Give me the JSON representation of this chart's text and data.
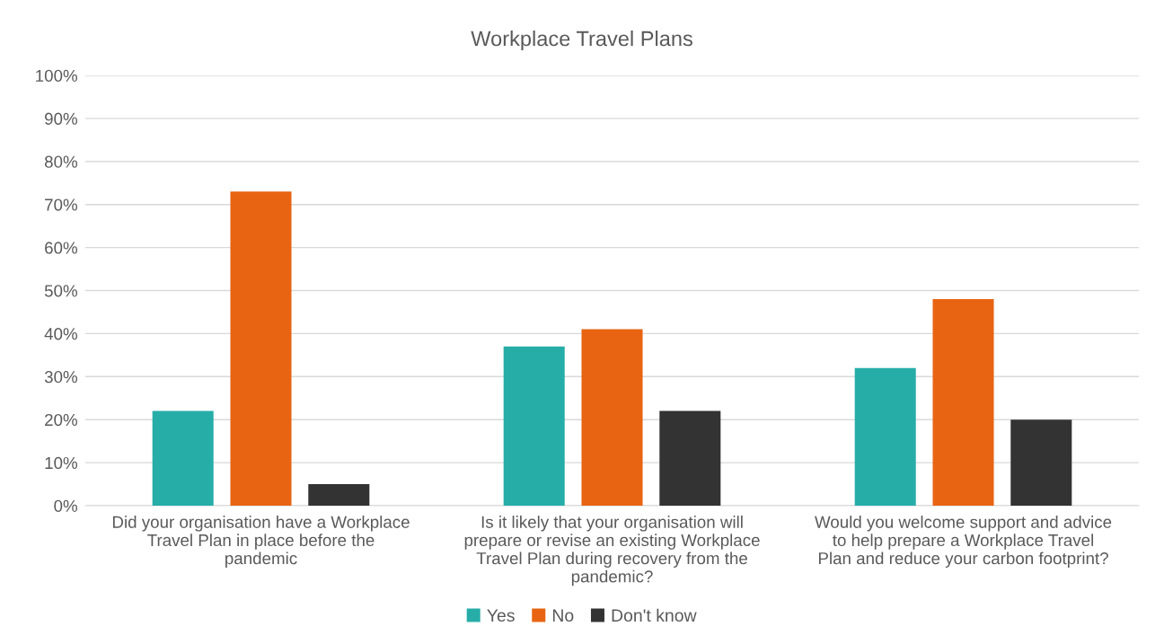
{
  "chart_data": {
    "type": "bar",
    "title": "Workplace Travel Plans",
    "categories": [
      "Did your organisation have a Workplace\nTravel Plan in place before the\npandemic",
      "Is it likely that your organisation will\nprepare or revise an existing Workplace\nTravel Plan during recovery from the\npandemic?",
      "Would you welcome support and advice\nto help prepare a Workplace Travel\nPlan and reduce your carbon footprint?"
    ],
    "series": [
      {
        "name": "Yes",
        "color": "#26ada8",
        "values": [
          22,
          37,
          32
        ]
      },
      {
        "name": "No",
        "color": "#e86412",
        "values": [
          73,
          41,
          48
        ]
      },
      {
        "name": "Don't know",
        "color": "#333333",
        "values": [
          5,
          22,
          20
        ]
      }
    ],
    "ylim": [
      0,
      100
    ],
    "yticks": [
      {
        "value": 0,
        "label": "0%"
      },
      {
        "value": 10,
        "label": "10%"
      },
      {
        "value": 20,
        "label": "20%"
      },
      {
        "value": 30,
        "label": "30%"
      },
      {
        "value": 40,
        "label": "40%"
      },
      {
        "value": 50,
        "label": "50%"
      },
      {
        "value": 60,
        "label": "60%"
      },
      {
        "value": 70,
        "label": "70%"
      },
      {
        "value": 80,
        "label": "80%"
      },
      {
        "value": 90,
        "label": "90%"
      },
      {
        "value": 100,
        "label": "100%"
      }
    ],
    "grid": "y",
    "legend": "bottom"
  }
}
